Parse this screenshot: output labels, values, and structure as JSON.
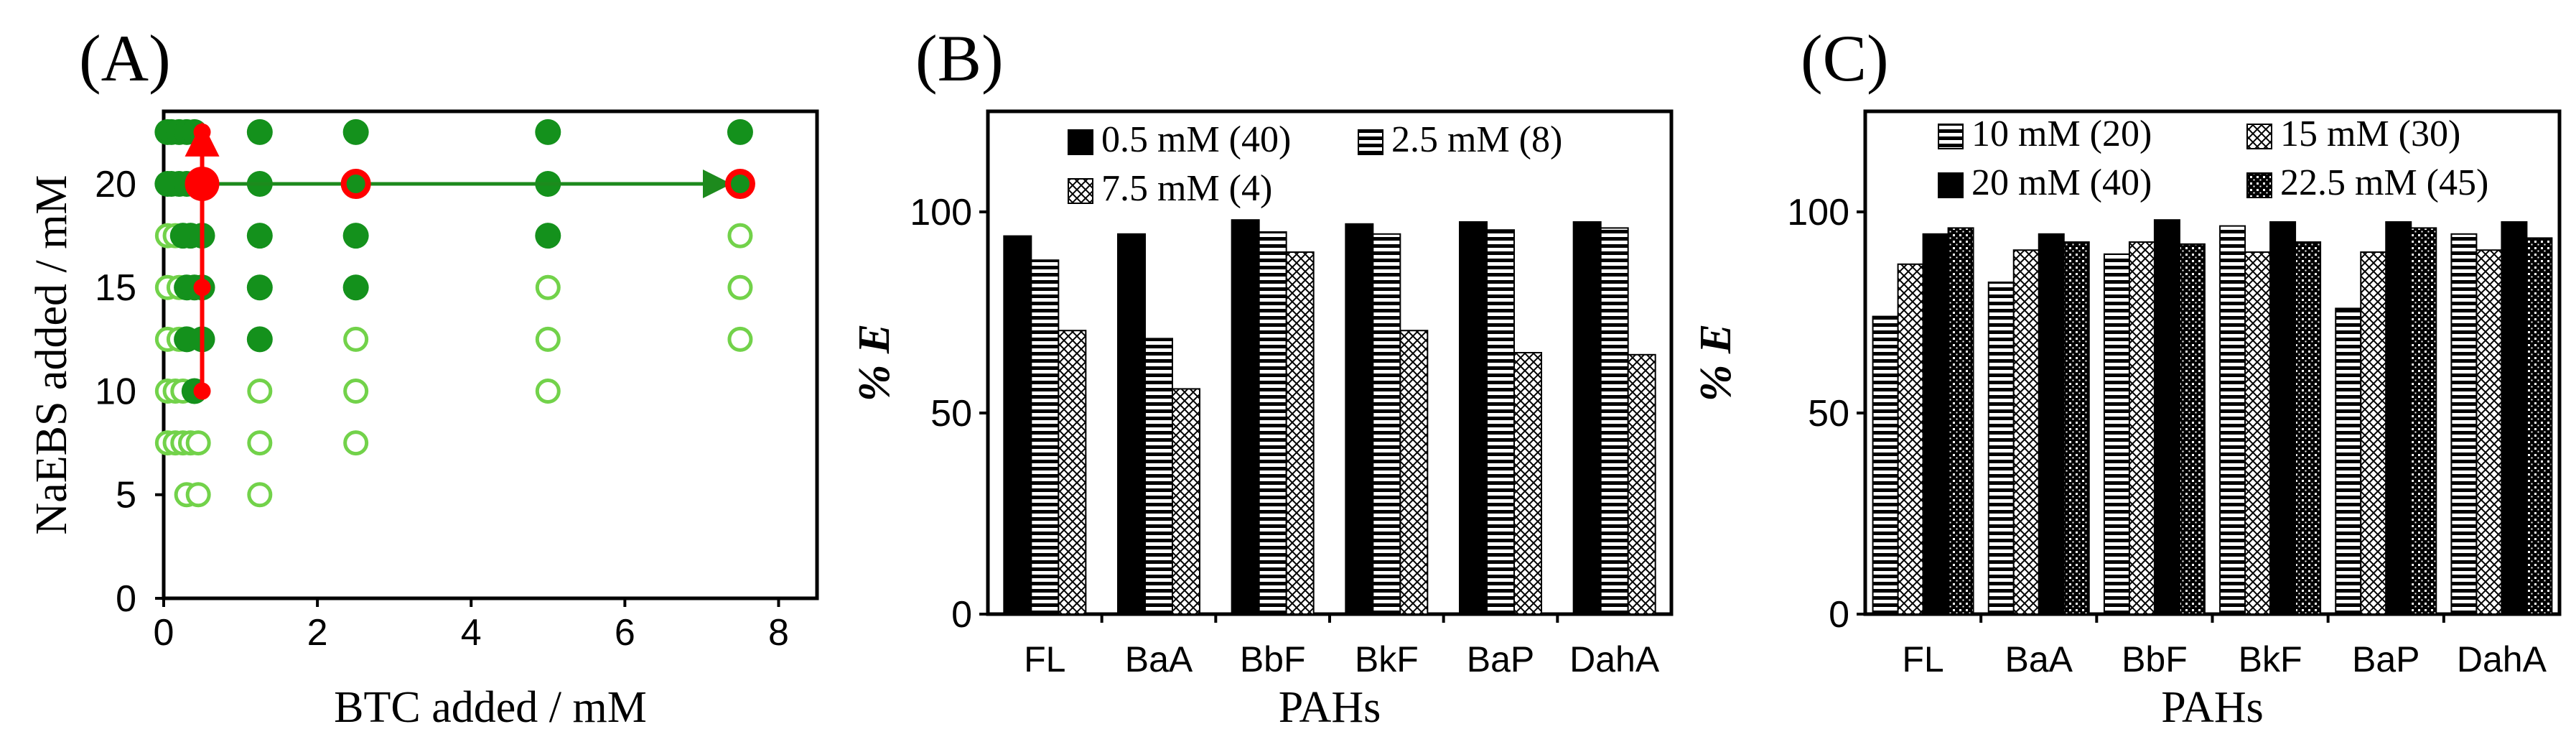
{
  "chart_data": [
    {
      "panel": "(A)",
      "type": "scatter",
      "xlabel": "BTC added / mM",
      "ylabel": "NaEBS added / mM",
      "xlim": [
        0,
        8.5
      ],
      "ylim": [
        0,
        23.5
      ],
      "xticks": [
        0,
        2,
        4,
        6,
        8
      ],
      "yticks": [
        0,
        5,
        10,
        15,
        20
      ],
      "colors": {
        "filled": "#14911c",
        "open": "#72d24a",
        "highlight": "#ff0000",
        "arrow": "#1d8a1d"
      },
      "series": [
        {
          "name": "filled",
          "points": [
            [
              0.05,
              22.5
            ],
            [
              0.1,
              22.5
            ],
            [
              0.2,
              22.5
            ],
            [
              0.3,
              22.5
            ],
            [
              0.4,
              22.5
            ],
            [
              1.25,
              22.5
            ],
            [
              2.5,
              22.5
            ],
            [
              5,
              22.5
            ],
            [
              7.5,
              22.5
            ],
            [
              0.05,
              20
            ],
            [
              0.1,
              20
            ],
            [
              0.2,
              20
            ],
            [
              0.3,
              20
            ],
            [
              0.5,
              20
            ],
            [
              1.25,
              20
            ],
            [
              2.5,
              20
            ],
            [
              5,
              20
            ],
            [
              7.5,
              20
            ],
            [
              0.25,
              17.5
            ],
            [
              0.35,
              17.5
            ],
            [
              0.5,
              17.5
            ],
            [
              1.25,
              17.5
            ],
            [
              2.5,
              17.5
            ],
            [
              5,
              17.5
            ],
            [
              0.3,
              15
            ],
            [
              0.4,
              15
            ],
            [
              0.5,
              15
            ],
            [
              1.25,
              15
            ],
            [
              2.5,
              15
            ],
            [
              0.3,
              12.5
            ],
            [
              0.5,
              12.5
            ],
            [
              1.25,
              12.5
            ],
            [
              0.4,
              10
            ]
          ]
        },
        {
          "name": "open",
          "points": [
            [
              0.05,
              20
            ],
            [
              0.05,
              17.5
            ],
            [
              0.15,
              17.5
            ],
            [
              0.05,
              15
            ],
            [
              0.2,
              15
            ],
            [
              0.05,
              12.5
            ],
            [
              0.2,
              12.5
            ],
            [
              2.5,
              12.5
            ],
            [
              5,
              15
            ],
            [
              5,
              12.5
            ],
            [
              7.5,
              17.5
            ],
            [
              7.5,
              15
            ],
            [
              7.5,
              12.5
            ],
            [
              0.05,
              10
            ],
            [
              0.15,
              10
            ],
            [
              0.25,
              10
            ],
            [
              1.25,
              10
            ],
            [
              2.5,
              10
            ],
            [
              5,
              10
            ],
            [
              0.05,
              7.5
            ],
            [
              0.15,
              7.5
            ],
            [
              0.25,
              7.5
            ],
            [
              0.35,
              7.5
            ],
            [
              0.45,
              7.5
            ],
            [
              1.25,
              7.5
            ],
            [
              2.5,
              7.5
            ],
            [
              0.3,
              5
            ],
            [
              0.45,
              5
            ],
            [
              1.25,
              5
            ]
          ]
        },
        {
          "name": "highlight",
          "points": [
            [
              0.5,
              22.5
            ],
            [
              0.5,
              20
            ],
            [
              0.5,
              15
            ],
            [
              0.5,
              10
            ],
            [
              2.5,
              20
            ],
            [
              7.5,
              20
            ]
          ]
        }
      ],
      "arrows": [
        {
          "from": [
            0.5,
            10
          ],
          "to": [
            0.5,
            22.5
          ],
          "color": "red"
        },
        {
          "from": [
            0.5,
            20
          ],
          "to": [
            7.5,
            20
          ],
          "color": "green"
        }
      ]
    },
    {
      "panel": "(B)",
      "type": "bar",
      "xlabel": "PAHs",
      "ylabel": "% E",
      "ylim": [
        0,
        125
      ],
      "yticks": [
        0,
        50,
        100
      ],
      "categories": [
        "FL",
        "BaA",
        "BbF",
        "BkF",
        "BaP",
        "DahA"
      ],
      "series": [
        {
          "name": "0.5 mM (40)",
          "pattern": "solid",
          "values": [
            94,
            94.5,
            98,
            97,
            97.5,
            97.5
          ]
        },
        {
          "name": "2.5 mM (8)",
          "pattern": "hlines",
          "values": [
            88,
            68.5,
            95,
            94.5,
            95.5,
            96
          ]
        },
        {
          "name": "7.5 mM (4)",
          "pattern": "cross",
          "values": [
            70.5,
            56,
            90,
            70.5,
            65,
            64.5
          ]
        }
      ]
    },
    {
      "panel": "(C)",
      "type": "bar",
      "xlabel": "PAHs",
      "ylabel": "% E",
      "ylim": [
        0,
        125
      ],
      "yticks": [
        0,
        50,
        100
      ],
      "categories": [
        "FL",
        "BaA",
        "BbF",
        "BkF",
        "BaP",
        "DahA"
      ],
      "series": [
        {
          "name": "10 mM (20)",
          "pattern": "hlines",
          "values": [
            74,
            82.5,
            89.5,
            96.5,
            76,
            94.5
          ]
        },
        {
          "name": "15 mM (30)",
          "pattern": "cross",
          "values": [
            87,
            90.5,
            92.5,
            90,
            90,
            90.5
          ]
        },
        {
          "name": "20 mM (40)",
          "pattern": "solid",
          "values": [
            94.5,
            94.5,
            98,
            97.5,
            97.5,
            97.5
          ]
        },
        {
          "name": "22.5 mM (45)",
          "pattern": "dots",
          "values": [
            96,
            92.5,
            92,
            92.5,
            96,
            93.5
          ]
        }
      ]
    }
  ]
}
